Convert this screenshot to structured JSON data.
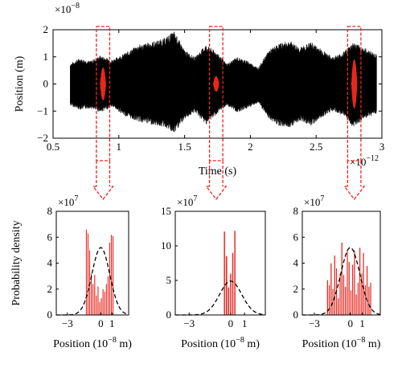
{
  "chart_data": [
    {
      "type": "area",
      "xlabel": "Time (s)",
      "ylabel": "Position (m)",
      "xlim": [
        0.5,
        3.0
      ],
      "ylim": [
        -2,
        2
      ],
      "xticks": [
        0.5,
        1,
        1.5,
        2,
        2.5,
        3
      ],
      "xtick_labels": [
        "0.5",
        "1",
        "1.5",
        "2",
        "2.5",
        "3"
      ],
      "yticks": [
        -2,
        -1,
        0,
        1,
        2
      ],
      "ytick_labels": [
        "−2",
        "−1",
        "0",
        "1",
        "2"
      ],
      "y_multiplier": {
        "base": "×10",
        "exp": "−8"
      },
      "x_multiplier": {
        "base": "×10",
        "exp": "−12"
      },
      "signal_x_range": [
        0.63,
        2.96
      ],
      "envelope": {
        "x": [
          0.63,
          0.7,
          0.78,
          0.86,
          0.95,
          1.05,
          1.15,
          1.25,
          1.35,
          1.42,
          1.5,
          1.58,
          1.66,
          1.74,
          1.82,
          1.9,
          1.98,
          2.06,
          2.14,
          2.22,
          2.3,
          2.38,
          2.46,
          2.54,
          2.62,
          2.7,
          2.78,
          2.86,
          2.96
        ],
        "upper": [
          0.75,
          0.95,
          0.85,
          1.05,
          0.9,
          1.15,
          1.45,
          1.55,
          1.7,
          1.95,
          1.25,
          1.0,
          1.45,
          1.2,
          0.75,
          1.0,
          0.85,
          0.6,
          1.25,
          1.5,
          1.6,
          1.35,
          1.55,
          1.3,
          1.0,
          1.15,
          1.55,
          1.35,
          1.1
        ],
        "lower": [
          -0.8,
          -0.95,
          -0.9,
          -1.05,
          -0.85,
          -1.2,
          -1.4,
          -1.5,
          -1.6,
          -1.85,
          -1.3,
          -1.05,
          -1.5,
          -1.15,
          -0.8,
          -1.05,
          -0.9,
          -0.7,
          -1.3,
          -1.55,
          -1.6,
          -1.35,
          -1.55,
          -1.25,
          -1.0,
          -1.15,
          -1.6,
          -1.3,
          -1.1
        ]
      },
      "highlights": [
        {
          "x_range": [
            0.86,
            0.9
          ],
          "amplitude": 1.1
        },
        {
          "x_range": [
            1.72,
            1.76
          ],
          "amplitude": 0.5
        },
        {
          "x_range": [
            2.77,
            2.81
          ],
          "amplitude": 1.65
        }
      ],
      "highlight_color": "#e8261f",
      "signal_color": "#000000"
    },
    {
      "type": "bar",
      "xlabel": "Position (10−8 m)",
      "ylabel": "Probability density",
      "xlim": [
        -4,
        2.5
      ],
      "ylim": [
        0,
        8
      ],
      "xticks": [
        -3,
        0,
        1
      ],
      "xtick_labels": [
        "−3",
        "0",
        "1"
      ],
      "yticks": [
        0,
        2,
        4,
        6,
        8
      ],
      "ytick_labels": [
        "0",
        "2",
        "4",
        "6",
        "8"
      ],
      "y_multiplier": {
        "base": "×10",
        "exp": "7"
      },
      "bars": {
        "x": [
          -1.3,
          -1.15,
          -1.0,
          -0.85,
          -0.7,
          -0.55,
          -0.4,
          -0.25,
          -0.1,
          0.05,
          0.2,
          0.35,
          0.5,
          0.65,
          0.8,
          0.95,
          1.1
        ],
        "values": [
          6.6,
          6.3,
          5.0,
          3.2,
          2.4,
          3.1,
          1.5,
          2.2,
          1.0,
          1.3,
          2.0,
          1.8,
          2.4,
          3.0,
          5.6,
          6.2,
          6.1
        ]
      },
      "gaussian": {
        "mean": 0,
        "peak": 5.2,
        "sigma": 0.8
      },
      "bar_color": "#e8261f"
    },
    {
      "type": "bar",
      "xlabel": "Position (10−8 m)",
      "ylabel": "",
      "xlim": [
        -4,
        2.5
      ],
      "ylim": [
        0,
        15
      ],
      "xticks": [
        -3,
        0,
        1
      ],
      "xtick_labels": [
        "−3",
        "0",
        "1"
      ],
      "yticks": [
        0,
        5,
        10,
        15
      ],
      "ytick_labels": [
        "0",
        "5",
        "10",
        "15"
      ],
      "y_multiplier": {
        "base": "×10",
        "exp": "7"
      },
      "bars": {
        "x": [
          -0.45,
          -0.3,
          -0.15,
          0.0,
          0.15,
          0.3
        ],
        "values": [
          12.1,
          8.5,
          4.0,
          6.0,
          9.0,
          12.2
        ]
      },
      "gaussian": {
        "mean": 0,
        "peak": 4.9,
        "sigma": 0.8
      },
      "bar_color": "#e8261f"
    },
    {
      "type": "bar",
      "xlabel": "Position (10−8 m)",
      "ylabel": "",
      "xlim": [
        -4,
        2.5
      ],
      "ylim": [
        0,
        8
      ],
      "xticks": [
        -3,
        0,
        1
      ],
      "xtick_labels": [
        "−3",
        "0",
        "1"
      ],
      "yticks": [
        0,
        2,
        4,
        6,
        8
      ],
      "ytick_labels": [
        "0",
        "2",
        "4",
        "6",
        "8"
      ],
      "y_multiplier": {
        "base": "×10",
        "exp": "7"
      },
      "bars": {
        "x": [
          -1.9,
          -1.75,
          -1.6,
          -1.45,
          -1.3,
          -1.15,
          -1.0,
          -0.85,
          -0.7,
          -0.55,
          -0.4,
          -0.25,
          -0.1,
          0.05,
          0.2,
          0.35,
          0.5,
          0.65,
          0.8,
          0.95,
          1.1,
          1.25,
          1.4,
          1.55,
          1.7
        ],
        "values": [
          2.7,
          2.3,
          4.0,
          2.0,
          4.6,
          3.6,
          1.3,
          3.2,
          5.6,
          3.1,
          2.2,
          5.0,
          4.1,
          1.9,
          3.9,
          5.0,
          1.6,
          2.5,
          5.2,
          3.2,
          4.8,
          2.3,
          3.8,
          2.2,
          2.5
        ]
      },
      "gaussian": {
        "mean": 0,
        "peak": 5.2,
        "sigma": 0.8
      },
      "bar_color": "#e8261f"
    }
  ],
  "style": {
    "dash_color": "#e8261f",
    "gaussian_color": "#000000"
  }
}
